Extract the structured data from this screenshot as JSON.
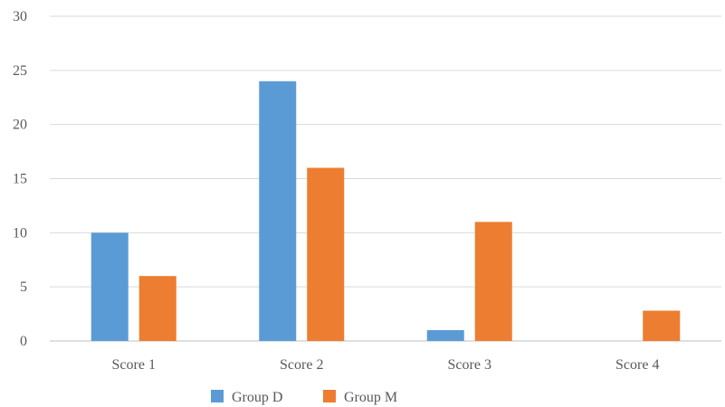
{
  "chart_data": {
    "type": "bar",
    "title": "",
    "xlabel": "",
    "ylabel": "",
    "categories": [
      "Score 1",
      "Score 2",
      "Score 3",
      "Score 4"
    ],
    "series": [
      {
        "name": "Group D",
        "color": "#5B9BD5",
        "values": [
          10,
          24,
          1,
          0
        ]
      },
      {
        "name": "Group M",
        "color": "#ED7D31",
        "values": [
          6,
          16,
          11,
          2.8
        ]
      }
    ],
    "ylim": [
      0,
      30
    ],
    "yticks": [
      "0",
      "5",
      "10",
      "15",
      "20",
      "25",
      "30"
    ],
    "grid": true,
    "legend": "bottom",
    "colors": {
      "gridline": "#D9D9D9",
      "axis": "#BFBFBF",
      "text": "#595959"
    }
  }
}
